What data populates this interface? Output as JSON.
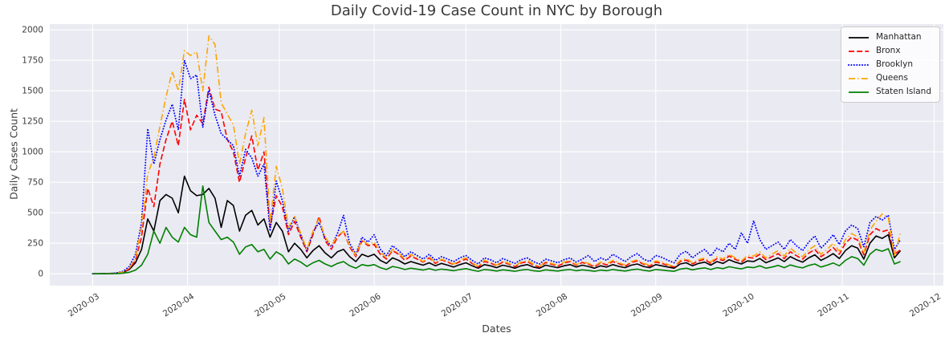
{
  "chart_data": {
    "type": "line",
    "title": "Daily Covid-19 Case Count in NYC by Borough",
    "xlabel": "Dates",
    "ylabel": "Daily Cases Count",
    "grid": true,
    "legend_position": "upper right",
    "colors": {
      "plot_background": "#eaeaf2",
      "grid": "#ffffff",
      "tick_text": "#3c3c3c",
      "title_text": "#3a3a3a",
      "legend_border": "#cccccc"
    },
    "y_ticks": [
      0,
      250,
      500,
      750,
      1000,
      1250,
      1500,
      1750,
      2000
    ],
    "ylim": [
      0,
      2000
    ],
    "x_tick_labels": [
      "2020-03",
      "2020-04",
      "2020-05",
      "2020-06",
      "2020-07",
      "2020-08",
      "2020-09",
      "2020-10",
      "2020-11",
      "2020-12"
    ],
    "x_tick_days": [
      0,
      31,
      61,
      92,
      122,
      153,
      184,
      214,
      245,
      275
    ],
    "x_start_date": "2020-03-01",
    "x_end_date": "2020-11-20",
    "x_step_days": 2,
    "series": [
      {
        "name": "Manhattan",
        "color": "#000000",
        "style": "solid",
        "values": [
          0,
          0,
          1,
          2,
          5,
          12,
          35,
          90,
          200,
          450,
          350,
          600,
          650,
          620,
          500,
          800,
          680,
          640,
          650,
          700,
          620,
          380,
          600,
          560,
          350,
          480,
          520,
          400,
          450,
          300,
          420,
          350,
          180,
          250,
          200,
          130,
          190,
          230,
          170,
          130,
          180,
          200,
          140,
          100,
          160,
          140,
          160,
          110,
          85,
          130,
          110,
          80,
          100,
          85,
          70,
          90,
          65,
          85,
          70,
          55,
          75,
          90,
          65,
          45,
          75,
          65,
          50,
          70,
          60,
          45,
          65,
          75,
          55,
          45,
          70,
          60,
          50,
          65,
          75,
          55,
          70,
          60,
          45,
          65,
          55,
          75,
          60,
          50,
          70,
          80,
          60,
          50,
          75,
          65,
          55,
          45,
          80,
          90,
          65,
          85,
          95,
          70,
          100,
          85,
          115,
          95,
          80,
          105,
          100,
          125,
          90,
          110,
          130,
          100,
          140,
          115,
          95,
          130,
          155,
          110,
          135,
          165,
          125,
          190,
          230,
          210,
          120,
          250,
          310,
          290,
          320,
          130,
          190
        ]
      },
      {
        "name": "Bronx",
        "color": "#ff0000",
        "style": "dashed",
        "values": [
          0,
          0,
          1,
          2,
          6,
          14,
          40,
          110,
          300,
          700,
          550,
          900,
          1100,
          1250,
          1050,
          1430,
          1180,
          1300,
          1230,
          1530,
          1350,
          1330,
          1100,
          1000,
          750,
          950,
          1130,
          850,
          1000,
          380,
          640,
          550,
          320,
          430,
          300,
          180,
          320,
          470,
          270,
          200,
          300,
          350,
          220,
          140,
          270,
          230,
          240,
          160,
          120,
          190,
          160,
          110,
          145,
          120,
          95,
          130,
          85,
          115,
          95,
          75,
          100,
          120,
          85,
          55,
          100,
          88,
          65,
          95,
          78,
          58,
          88,
          100,
          72,
          55,
          92,
          78,
          62,
          88,
          100,
          70,
          92,
          78,
          58,
          88,
          72,
          100,
          82,
          62,
          92,
          105,
          78,
          62,
          95,
          85,
          68,
          55,
          100,
          112,
          80,
          105,
          118,
          85,
          125,
          108,
          145,
          118,
          95,
          135,
          128,
          160,
          115,
          140,
          165,
          125,
          180,
          148,
          120,
          168,
          200,
          140,
          172,
          215,
          160,
          250,
          300,
          275,
          155,
          320,
          370,
          345,
          360,
          160,
          195
        ]
      },
      {
        "name": "Brooklyn",
        "color": "#0000ff",
        "style": "dotted",
        "values": [
          0,
          0,
          1,
          3,
          8,
          20,
          60,
          160,
          420,
          1190,
          900,
          1100,
          1260,
          1390,
          1180,
          1750,
          1600,
          1630,
          1200,
          1505,
          1300,
          1150,
          1100,
          1050,
          800,
          1020,
          950,
          800,
          900,
          350,
          760,
          600,
          350,
          470,
          320,
          190,
          340,
          420,
          290,
          220,
          330,
          480,
          250,
          160,
          300,
          260,
          320,
          200,
          150,
          230,
          190,
          140,
          180,
          150,
          120,
          160,
          110,
          140,
          120,
          100,
          130,
          150,
          110,
          80,
          130,
          115,
          90,
          125,
          105,
          85,
          115,
          130,
          100,
          80,
          120,
          105,
          90,
          115,
          130,
          95,
          120,
          150,
          100,
          130,
          110,
          160,
          130,
          100,
          140,
          165,
          120,
          100,
          150,
          135,
          110,
          90,
          160,
          185,
          130,
          170,
          200,
          145,
          210,
          180,
          250,
          200,
          336,
          250,
          435,
          280,
          200,
          230,
          260,
          200,
          280,
          230,
          190,
          260,
          310,
          210,
          260,
          320,
          240,
          350,
          400,
          370,
          220,
          420,
          470,
          440,
          480,
          200,
          280
        ]
      },
      {
        "name": "Queens",
        "color": "#ffa500",
        "style": "dashdot",
        "values": [
          0,
          0,
          1,
          2,
          6,
          15,
          45,
          130,
          380,
          820,
          950,
          1210,
          1450,
          1660,
          1500,
          1830,
          1790,
          1820,
          1500,
          1950,
          1880,
          1400,
          1310,
          1220,
          900,
          1150,
          1340,
          1050,
          1280,
          420,
          880,
          700,
          380,
          470,
          330,
          200,
          350,
          450,
          300,
          230,
          310,
          350,
          230,
          150,
          280,
          240,
          260,
          180,
          130,
          200,
          170,
          120,
          160,
          130,
          100,
          140,
          90,
          120,
          100,
          80,
          110,
          130,
          90,
          60,
          110,
          95,
          70,
          105,
          85,
          65,
          95,
          110,
          80,
          60,
          100,
          85,
          70,
          95,
          110,
          75,
          100,
          85,
          65,
          95,
          80,
          110,
          90,
          70,
          100,
          115,
          85,
          70,
          105,
          95,
          75,
          60,
          110,
          125,
          90,
          115,
          130,
          95,
          140,
          120,
          160,
          130,
          105,
          150,
          145,
          180,
          130,
          160,
          190,
          145,
          210,
          170,
          140,
          195,
          230,
          160,
          200,
          250,
          185,
          280,
          330,
          300,
          170,
          360,
          430,
          490,
          460,
          150,
          340
        ]
      },
      {
        "name": "Staten Island",
        "color": "#008000",
        "style": "solid",
        "values": [
          0,
          0,
          0,
          1,
          2,
          5,
          12,
          30,
          70,
          160,
          350,
          250,
          380,
          300,
          260,
          380,
          320,
          300,
          720,
          420,
          350,
          280,
          300,
          260,
          160,
          220,
          240,
          180,
          200,
          120,
          180,
          150,
          80,
          120,
          95,
          60,
          90,
          110,
          80,
          60,
          85,
          100,
          65,
          45,
          75,
          65,
          75,
          50,
          35,
          60,
          50,
          35,
          45,
          38,
          30,
          42,
          28,
          38,
          32,
          25,
          35,
          42,
          30,
          20,
          35,
          30,
          22,
          32,
          27,
          20,
          30,
          35,
          25,
          20,
          32,
          27,
          22,
          30,
          35,
          25,
          32,
          27,
          20,
          30,
          25,
          35,
          28,
          22,
          32,
          38,
          28,
          22,
          35,
          30,
          25,
          20,
          38,
          45,
          32,
          42,
          48,
          35,
          50,
          42,
          58,
          48,
          40,
          55,
          50,
          65,
          45,
          55,
          68,
          50,
          72,
          58,
          48,
          68,
          80,
          55,
          70,
          88,
          65,
          110,
          140,
          125,
          70,
          160,
          200,
          185,
          205,
          80,
          100
        ]
      }
    ]
  }
}
